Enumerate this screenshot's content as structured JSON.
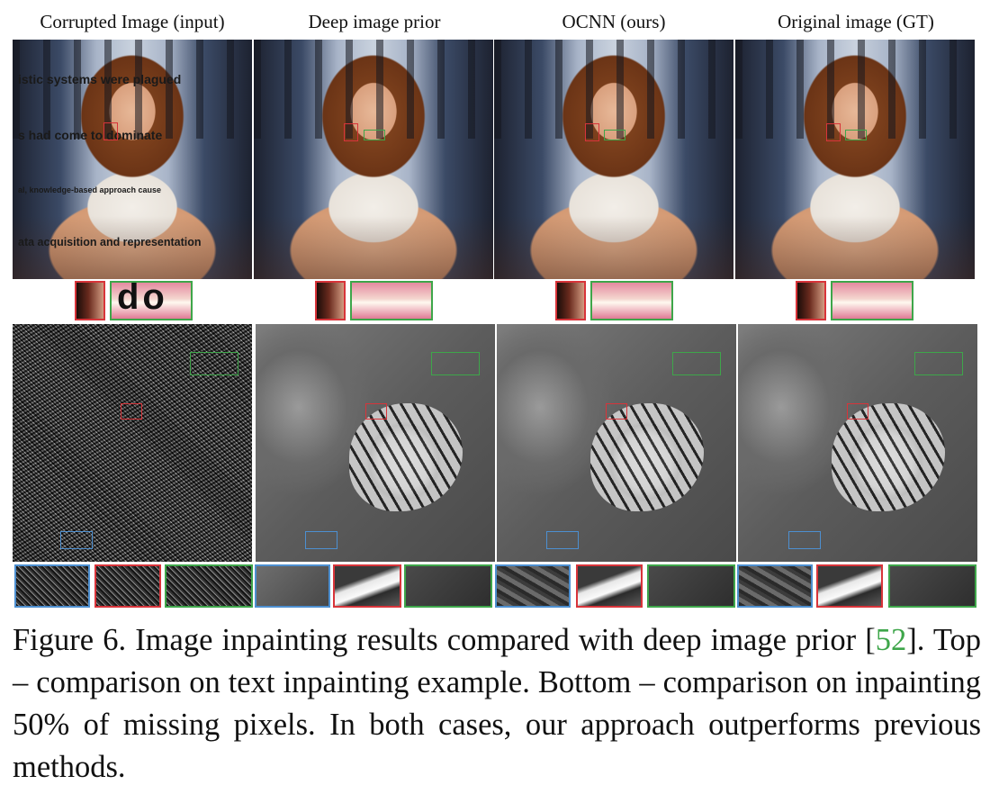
{
  "columns": [
    {
      "title": "Corrupted Image (input)"
    },
    {
      "title": "Deep image prior"
    },
    {
      "title": "OCNN (ours)"
    },
    {
      "title": "Original image (GT)"
    }
  ],
  "overlay_text": [
    "istic systems were plagued",
    "s had come to dominate",
    "al, knowledge-based approach cause",
    "ata acquisition and representation"
  ],
  "crop_text": "do",
  "caption": {
    "part1": "Figure 6. Image inpainting results compared with deep image prior [",
    "ref": "52",
    "part2": "].  Top – comparison on text inpainting example.  Bottom – comparison on inpainting 50% of missing pixels.  In both cases, our approach outperforms previous methods."
  }
}
